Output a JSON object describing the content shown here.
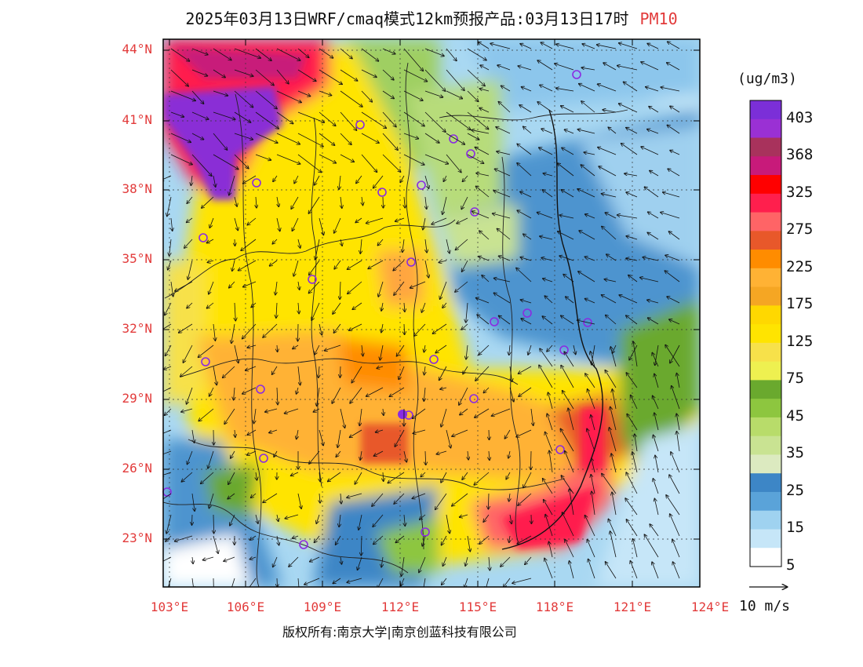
{
  "title": {
    "main": "2025年03月13日WRF/cmaq模式12km预报产品:03月13日17时",
    "pollutant": "PM10"
  },
  "units": "(ug/m3)",
  "colorbar": {
    "labels": [
      "403",
      "368",
      "325",
      "275",
      "225",
      "175",
      "125",
      "75",
      "45",
      "35",
      "25",
      "15",
      "5"
    ],
    "colors": [
      "#7b2fd8",
      "#9a30d4",
      "#a8325c",
      "#c81a7a",
      "#ff0000",
      "#ff1f4d",
      "#ff6466",
      "#e8582a",
      "#ff8c00",
      "#ffb234",
      "#f5a623",
      "#ffd800",
      "#ffe400",
      "#f7e14a",
      "#eef050",
      "#6aa92e",
      "#8dc63f",
      "#b8dc6a",
      "#c9e392",
      "#dceac0",
      "#3d86c6",
      "#5aa3d9",
      "#9fd2f0",
      "#c6e6f8",
      "#ffffff"
    ]
  },
  "lat_labels": [
    "44°N",
    "41°N",
    "38°N",
    "35°N",
    "32°N",
    "29°N",
    "26°N",
    "23°N"
  ],
  "lon_labels": [
    "103°E",
    "106°E",
    "109°E",
    "112°E",
    "115°E",
    "118°E",
    "121°E",
    "124°E"
  ],
  "wind_scale": "10 m/s",
  "copyright": "版权所有:南京大学|南京创蓝科技有限公司"
}
